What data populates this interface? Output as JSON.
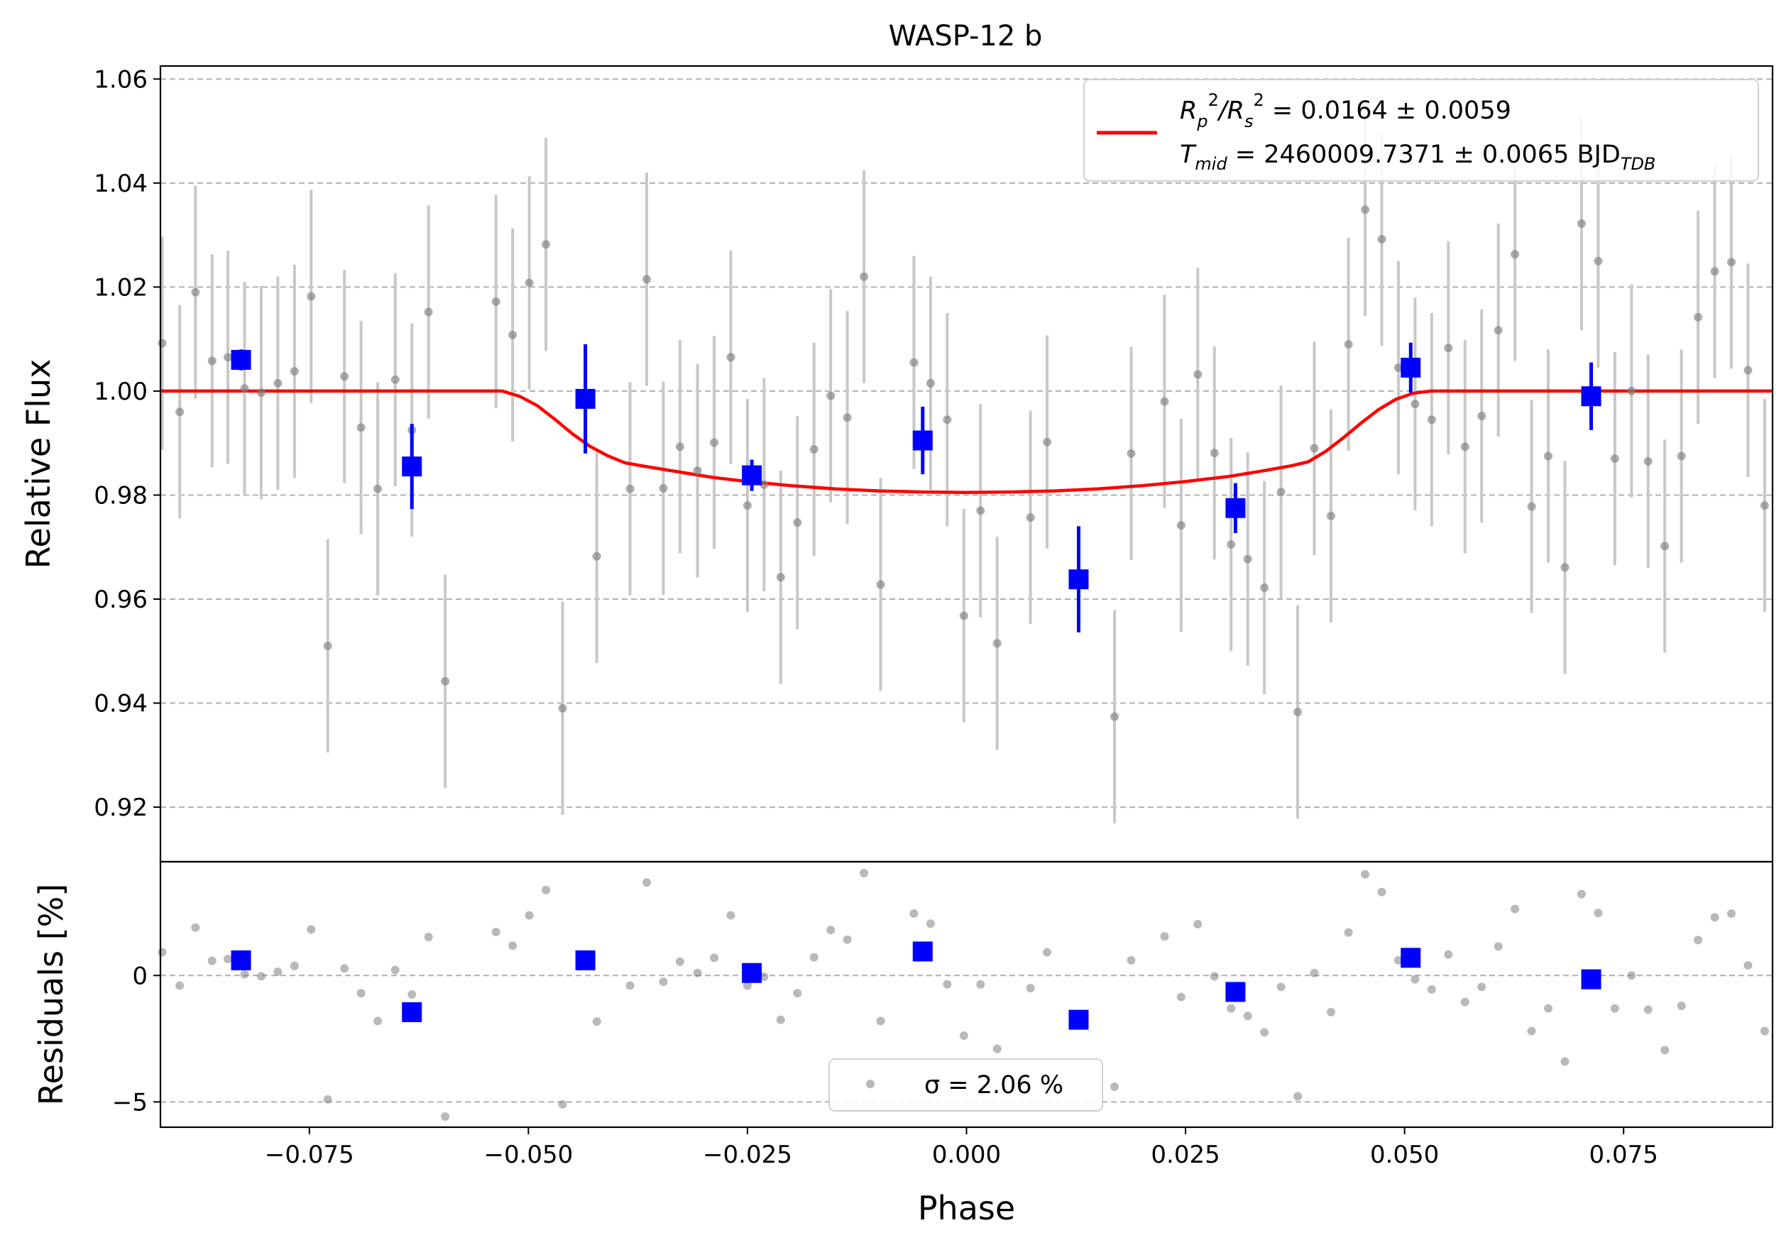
{
  "chart_data": {
    "type": "scatter",
    "title": "WASP-12 b",
    "xlabel": "Phase",
    "xlim": [
      -0.092,
      0.092
    ],
    "xticks": [
      -0.075,
      -0.05,
      -0.025,
      0.0,
      0.025,
      0.05,
      0.075
    ],
    "xtick_labels": [
      "−0.075",
      "−0.050",
      "−0.025",
      "0.000",
      "0.025",
      "0.050",
      "0.075"
    ],
    "top_panel": {
      "ylabel": "Relative Flux",
      "ylim": [
        0.9095,
        1.0625
      ],
      "yticks": [
        0.92,
        0.94,
        0.96,
        0.98,
        1.0,
        1.02,
        1.04,
        1.06
      ],
      "ytick_labels": [
        "0.92",
        "0.94",
        "0.96",
        "0.98",
        "1.00",
        "1.02",
        "1.04",
        "1.06"
      ],
      "grid": "y dashed",
      "legend": {
        "placement": "top-right",
        "line1": "R₂²/Rₛ² = 0.0164 ± 0.0059",
        "line1_parts": [
          "R",
          "p",
          "2",
          "/R",
          "s",
          "2",
          " = 0.0164 ± 0.0059"
        ],
        "line2_parts": [
          "T",
          "mid",
          " = 2460009.7371 ± 0.0065 BJD",
          "TDB"
        ]
      },
      "raw_points": {
        "color": "#808080",
        "errorbar_color": "#c8c8c8",
        "x": [
          -0.0918,
          -0.0898,
          -0.088,
          -0.0861,
          -0.0843,
          -0.0824,
          -0.0805,
          -0.0786,
          -0.0767,
          -0.0748,
          -0.0729,
          -0.071,
          -0.0691,
          -0.0672,
          -0.0652,
          -0.0633,
          -0.0614,
          -0.0595,
          -0.0537,
          -0.0518,
          -0.0499,
          -0.048,
          -0.0461,
          -0.0422,
          -0.0384,
          -0.0365,
          -0.0346,
          -0.0327,
          -0.0307,
          -0.0288,
          -0.0269,
          -0.025,
          -0.0231,
          -0.0212,
          -0.0193,
          -0.0174,
          -0.0155,
          -0.0136,
          -0.0117,
          -0.0098,
          -0.006,
          -0.0041,
          -0.0022,
          -0.0003,
          0.0016,
          0.0035,
          0.0073,
          0.0092,
          0.0169,
          0.0188,
          0.0226,
          0.0245,
          0.0264,
          0.0283,
          0.0302,
          0.0321,
          0.034,
          0.0359,
          0.0378,
          0.0397,
          0.0416,
          0.0436,
          0.0455,
          0.0474,
          0.0493,
          0.0512,
          0.0531,
          0.055,
          0.0569,
          0.0588,
          0.0607,
          0.0626,
          0.0645,
          0.0664,
          0.0683,
          0.0702,
          0.0721,
          0.074,
          0.0759,
          0.0778,
          0.0797,
          0.0816,
          0.0835,
          0.0854,
          0.0873,
          0.0892,
          0.0911,
          0.0928
        ],
        "y": [
          1.0092,
          0.996,
          1.019,
          1.0058,
          1.0065,
          1.0005,
          0.9997,
          1.0015,
          1.0038,
          1.0182,
          0.951,
          1.0028,
          0.993,
          0.9812,
          1.0022,
          0.9925,
          1.0152,
          0.9442,
          1.0172,
          1.0108,
          1.0208,
          1.0282,
          0.939,
          0.9682,
          0.9812,
          1.0215,
          0.9813,
          0.9893,
          0.9847,
          0.9901,
          1.0065,
          0.978,
          0.982,
          0.9642,
          0.9747,
          0.9888,
          0.9991,
          0.9949,
          1.022,
          0.9628,
          1.0055,
          1.0015,
          0.9945,
          0.9568,
          0.977,
          0.9515,
          0.9757,
          0.9902,
          0.9374,
          0.988,
          0.998,
          0.9742,
          1.0032,
          0.9881,
          0.9705,
          0.9677,
          0.9622,
          0.9806,
          0.9383,
          0.989,
          0.976,
          1.009,
          1.0349,
          1.0292,
          1.0045,
          0.9975,
          0.9945,
          1.0083,
          0.9893,
          0.9952,
          1.0117,
          1.0263,
          0.9778,
          0.9875,
          0.9661,
          1.0322,
          1.025,
          0.987,
          1.0,
          0.9865,
          0.9702,
          0.9875,
          1.0142,
          1.023,
          1.0248,
          1.004,
          0.978,
          0.9795
        ],
        "yerr": 0.0205
      },
      "binned_points": {
        "color": "#0000ff",
        "x": [
          -0.0828,
          -0.0633,
          -0.0435,
          -0.0245,
          -0.005,
          0.0128,
          0.0307,
          0.0507,
          0.0713
        ],
        "y": [
          1.006,
          0.9855,
          0.9985,
          0.9838,
          0.9905,
          0.9638,
          0.9775,
          1.0045,
          0.999
        ],
        "yerr": [
          0.002,
          0.0082,
          0.0105,
          0.003,
          0.0065,
          0.0102,
          0.0048,
          0.0048,
          0.0065
        ]
      },
      "model": {
        "color": "#ff0000",
        "x": [
          -0.092,
          -0.053,
          -0.051,
          -0.049,
          -0.047,
          -0.045,
          -0.043,
          -0.041,
          -0.039,
          -0.037,
          -0.033,
          -0.029,
          -0.025,
          -0.02,
          -0.015,
          -0.01,
          -0.005,
          0.0,
          0.005,
          0.01,
          0.015,
          0.02,
          0.025,
          0.03,
          0.034,
          0.037,
          0.039,
          0.041,
          0.043,
          0.045,
          0.047,
          0.049,
          0.051,
          0.053,
          0.092
        ],
        "y": [
          1.0,
          1.0,
          0.999,
          0.9972,
          0.9946,
          0.9918,
          0.9894,
          0.9876,
          0.9862,
          0.9856,
          0.9845,
          0.9834,
          0.9826,
          0.9818,
          0.9812,
          0.9808,
          0.9806,
          0.9805,
          0.9806,
          0.9808,
          0.9812,
          0.9818,
          0.9826,
          0.9836,
          0.9847,
          0.9856,
          0.9864,
          0.9884,
          0.991,
          0.9938,
          0.9964,
          0.9984,
          0.9996,
          1.0,
          1.0
        ]
      }
    },
    "bottom_panel": {
      "ylabel": "Residuals [%]",
      "ylim": [
        -6.0,
        4.5
      ],
      "yticks": [
        -5,
        0
      ],
      "ytick_labels": [
        "−5",
        "0"
      ],
      "grid": "y dashed",
      "legend": {
        "placement": "bottom-center",
        "sigma_label": "σ = 2.06 %"
      },
      "raw_points": {
        "x": [
          -0.0918,
          -0.0898,
          -0.088,
          -0.0861,
          -0.0843,
          -0.0824,
          -0.0805,
          -0.0786,
          -0.0767,
          -0.0748,
          -0.0729,
          -0.071,
          -0.0691,
          -0.0672,
          -0.0652,
          -0.0633,
          -0.0614,
          -0.0595,
          -0.0537,
          -0.0518,
          -0.0499,
          -0.048,
          -0.0461,
          -0.0422,
          -0.0384,
          -0.0365,
          -0.0346,
          -0.0327,
          -0.0307,
          -0.0288,
          -0.0269,
          -0.025,
          -0.0231,
          -0.0212,
          -0.0193,
          -0.0174,
          -0.0155,
          -0.0136,
          -0.0117,
          -0.0098,
          -0.006,
          -0.0041,
          -0.0022,
          -0.0003,
          0.0016,
          0.0035,
          0.0073,
          0.0092,
          0.0169,
          0.0188,
          0.0226,
          0.0245,
          0.0264,
          0.0283,
          0.0302,
          0.0321,
          0.034,
          0.0359,
          0.0378,
          0.0397,
          0.0416,
          0.0436,
          0.0455,
          0.0474,
          0.0493,
          0.0512,
          0.0531,
          0.055,
          0.0569,
          0.0588,
          0.0607,
          0.0626,
          0.0645,
          0.0664,
          0.0683,
          0.0702,
          0.0721,
          0.074,
          0.0759,
          0.0778,
          0.0797,
          0.0816,
          0.0835,
          0.0854,
          0.0873,
          0.0892,
          0.0911,
          0.0928
        ],
        "y": [
          0.92,
          -0.4,
          1.9,
          0.58,
          0.65,
          0.05,
          -0.03,
          0.15,
          0.38,
          1.82,
          -4.9,
          0.28,
          -0.7,
          -1.8,
          0.22,
          -0.75,
          1.52,
          -5.58,
          1.72,
          1.18,
          2.38,
          3.38,
          -5.1,
          -1.82,
          -0.4,
          3.68,
          -0.25,
          0.55,
          0.1,
          0.7,
          2.38,
          -0.4,
          -0.05,
          -1.75,
          -0.7,
          0.72,
          1.8,
          1.42,
          4.05,
          -1.8,
          2.45,
          2.05,
          -0.35,
          -2.38,
          -0.35,
          -2.9,
          -0.5,
          0.92,
          -4.4,
          0.6,
          1.55,
          -0.85,
          2.03,
          -0.03,
          -1.3,
          -1.6,
          -2.25,
          -0.45,
          -4.78,
          0.1,
          -1.45,
          1.7,
          4.0,
          3.3,
          0.6,
          -0.15,
          -0.55,
          0.83,
          -1.05,
          -0.45,
          1.15,
          2.63,
          -2.2,
          -1.3,
          -3.4,
          3.22,
          2.47,
          -1.3,
          0.0,
          -1.35,
          -2.95,
          -1.2,
          1.4,
          2.3,
          2.45,
          0.4,
          -2.2,
          -0.4
        ]
      },
      "binned_points": {
        "x": [
          -0.0828,
          -0.0633,
          -0.0435,
          -0.0245,
          -0.005,
          0.0128,
          0.0307,
          0.0507,
          0.0713
        ],
        "y": [
          0.6,
          -1.45,
          0.6,
          0.1,
          0.95,
          -1.75,
          -0.65,
          0.7,
          -0.15
        ]
      },
      "zero_line": true
    }
  }
}
